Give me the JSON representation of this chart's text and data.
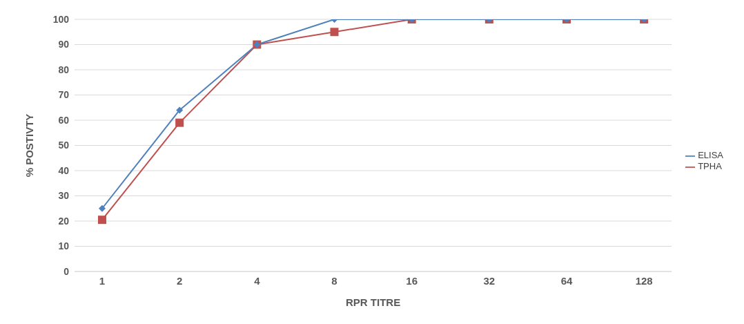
{
  "chart_data": {
    "type": "line",
    "xlabel": "RPR TITRE",
    "ylabel": "% POSTIVTY",
    "categories": [
      "1",
      "2",
      "4",
      "8",
      "16",
      "32",
      "64",
      "128"
    ],
    "series": [
      {
        "name": "ELISA",
        "color": "#4f81bd",
        "marker": "diamond",
        "values": [
          25,
          64,
          90,
          100,
          100,
          100,
          100,
          100
        ]
      },
      {
        "name": "TPHA",
        "color": "#c0504d",
        "marker": "square",
        "values": [
          20.5,
          59,
          90,
          95,
          100,
          100,
          100,
          100
        ]
      }
    ],
    "ylim": [
      0,
      100
    ],
    "yticks": [
      0,
      10,
      20,
      30,
      40,
      50,
      60,
      70,
      80,
      90,
      100
    ],
    "grid": "y",
    "legend": "right",
    "line_style": "solid"
  }
}
